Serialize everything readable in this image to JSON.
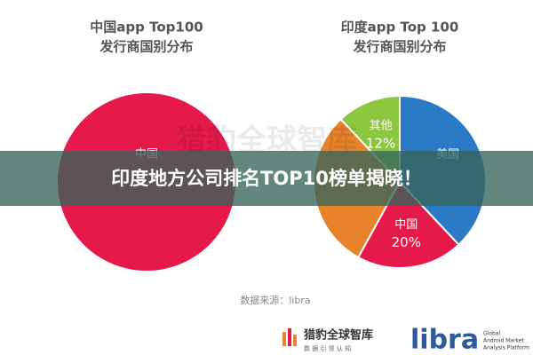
{
  "chart_data": [
    {
      "type": "pie",
      "title": "中国app Top100",
      "subtitle": "发行商国别分布",
      "categories": [
        "中国"
      ],
      "values": [
        100
      ],
      "value_labels": [
        null
      ],
      "colors": [
        "#e5194a"
      ]
    },
    {
      "type": "pie",
      "title": "印度app Top 100",
      "subtitle": "发行商国别分布",
      "categories": [
        "美国",
        "中国",
        null,
        "其他"
      ],
      "values": [
        38,
        20,
        30,
        12
      ],
      "value_labels": [
        null,
        "20%",
        null,
        "12%"
      ],
      "colors": [
        "#2c7ac6",
        "#e5194a",
        "#e8832b",
        "#8dc63f"
      ]
    }
  ],
  "watermark": "猎豹全球智库",
  "banner": "印度地方公司排名TOP10榜单揭晓！",
  "source": "数据来源：libra",
  "logos": {
    "cheetah": "猎豹全球智库",
    "cheetah_slogan": "数 据 引 领 认 知",
    "libra": "libra",
    "libra_line1": "Global",
    "libra_line2": "Android Market",
    "libra_line3": "Analysis Platform"
  }
}
